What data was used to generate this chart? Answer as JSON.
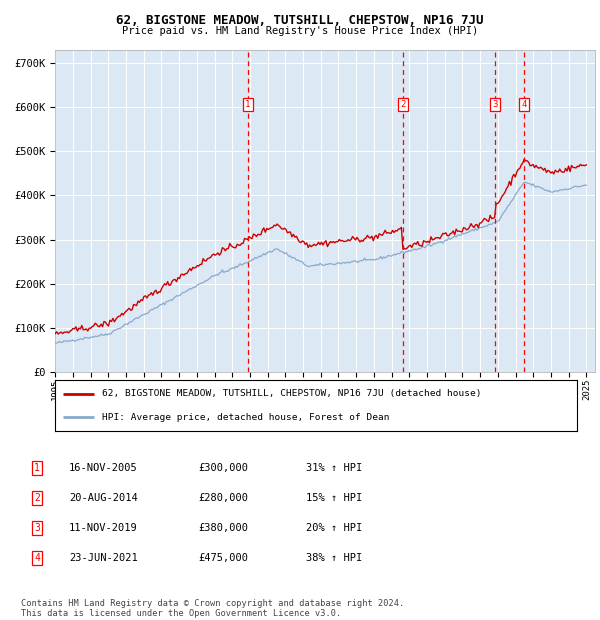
{
  "title": "62, BIGSTONE MEADOW, TUTSHILL, CHEPSTOW, NP16 7JU",
  "subtitle": "Price paid vs. HM Land Registry's House Price Index (HPI)",
  "ylabel_ticks": [
    "£0",
    "£100K",
    "£200K",
    "£300K",
    "£400K",
    "£500K",
    "£600K",
    "£700K"
  ],
  "ytick_values": [
    0,
    100000,
    200000,
    300000,
    400000,
    500000,
    600000,
    700000
  ],
  "ylim": [
    0,
    730000
  ],
  "xlim_start": 1995.0,
  "xlim_end": 2025.5,
  "plot_bg_color": "#dce9f5",
  "red_line_color": "#cc0000",
  "blue_line_color": "#88aacc",
  "sale_dates": [
    2005.88,
    2014.63,
    2019.86,
    2021.48
  ],
  "sale_labels": [
    "1",
    "2",
    "3",
    "4"
  ],
  "sale_prices": [
    300000,
    280000,
    380000,
    475000
  ],
  "legend_line1": "62, BIGSTONE MEADOW, TUTSHILL, CHEPSTOW, NP16 7JU (detached house)",
  "legend_line2": "HPI: Average price, detached house, Forest of Dean",
  "table_data": [
    [
      "1",
      "16-NOV-2005",
      "£300,000",
      "31% ↑ HPI"
    ],
    [
      "2",
      "20-AUG-2014",
      "£280,000",
      "15% ↑ HPI"
    ],
    [
      "3",
      "11-NOV-2019",
      "£380,000",
      "20% ↑ HPI"
    ],
    [
      "4",
      "23-JUN-2021",
      "£475,000",
      "38% ↑ HPI"
    ]
  ],
  "footer": "Contains HM Land Registry data © Crown copyright and database right 2024.\nThis data is licensed under the Open Government Licence v3.0."
}
